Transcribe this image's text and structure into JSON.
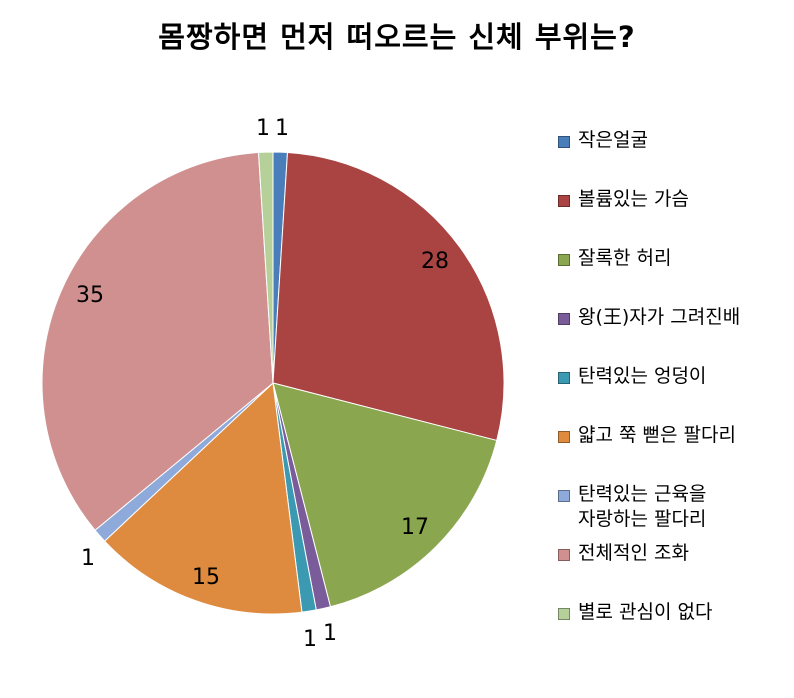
{
  "chart_data": {
    "type": "pie",
    "title": "몸짱하면 먼저 떠오르는 신체 부위는?",
    "legend_position": "right",
    "categories": [
      "작은얼굴",
      "볼륨있는 가슴",
      "잘록한 허리",
      "왕(王)자가 그려진배",
      "탄력있는 엉덩이",
      "얇고 쭉 뻗은 팔다리",
      "탄력있는 근육을\n자랑하는 팔다리",
      "전체적인 조화",
      "별로 관심이 없다"
    ],
    "values": [
      1,
      28,
      17,
      1,
      1,
      15,
      1,
      35,
      1
    ],
    "colors": [
      "#4a7ebb",
      "#a94442",
      "#8aa64e",
      "#7b5c9a",
      "#3b9ab2",
      "#de8a3f",
      "#8eaadb",
      "#d09090",
      "#b6d09a"
    ]
  }
}
